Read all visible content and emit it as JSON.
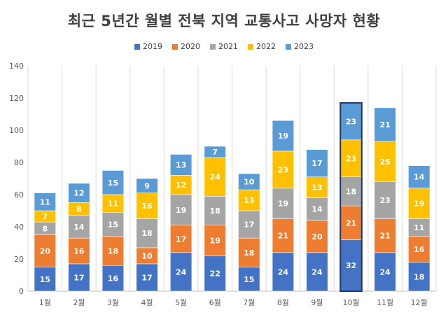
{
  "chart_data": {
    "type": "bar",
    "stacked": true,
    "title": "최근 5년간 월별 전북 지역 교통사고 사망자 현황",
    "categories": [
      "1월",
      "2월",
      "3월",
      "4월",
      "5월",
      "6월",
      "7월",
      "8월",
      "9월",
      "10월",
      "11월",
      "12월"
    ],
    "series": [
      {
        "name": "2019",
        "color": "#4472C4",
        "values": [
          15,
          17,
          16,
          17,
          24,
          22,
          15,
          24,
          24,
          32,
          24,
          18
        ]
      },
      {
        "name": "2020",
        "color": "#ED7D31",
        "values": [
          20,
          16,
          18,
          10,
          17,
          19,
          18,
          21,
          20,
          21,
          21,
          16
        ]
      },
      {
        "name": "2021",
        "color": "#A5A5A5",
        "values": [
          8,
          14,
          15,
          18,
          19,
          18,
          17,
          19,
          14,
          18,
          23,
          11
        ]
      },
      {
        "name": "2022",
        "color": "#FFC000",
        "values": [
          7,
          8,
          11,
          16,
          12,
          24,
          13,
          23,
          13,
          23,
          25,
          19
        ]
      },
      {
        "name": "2023",
        "color": "#5B9BD5",
        "values": [
          11,
          12,
          15,
          9,
          13,
          7,
          10,
          19,
          17,
          23,
          21,
          14
        ]
      }
    ],
    "yticks": [
      0,
      20,
      40,
      60,
      80,
      100,
      120,
      140
    ],
    "ylim": [
      0,
      140
    ],
    "xlabel": "",
    "ylabel": "",
    "grid": "vertical",
    "legend": "top",
    "highlighted_category": "10월"
  }
}
